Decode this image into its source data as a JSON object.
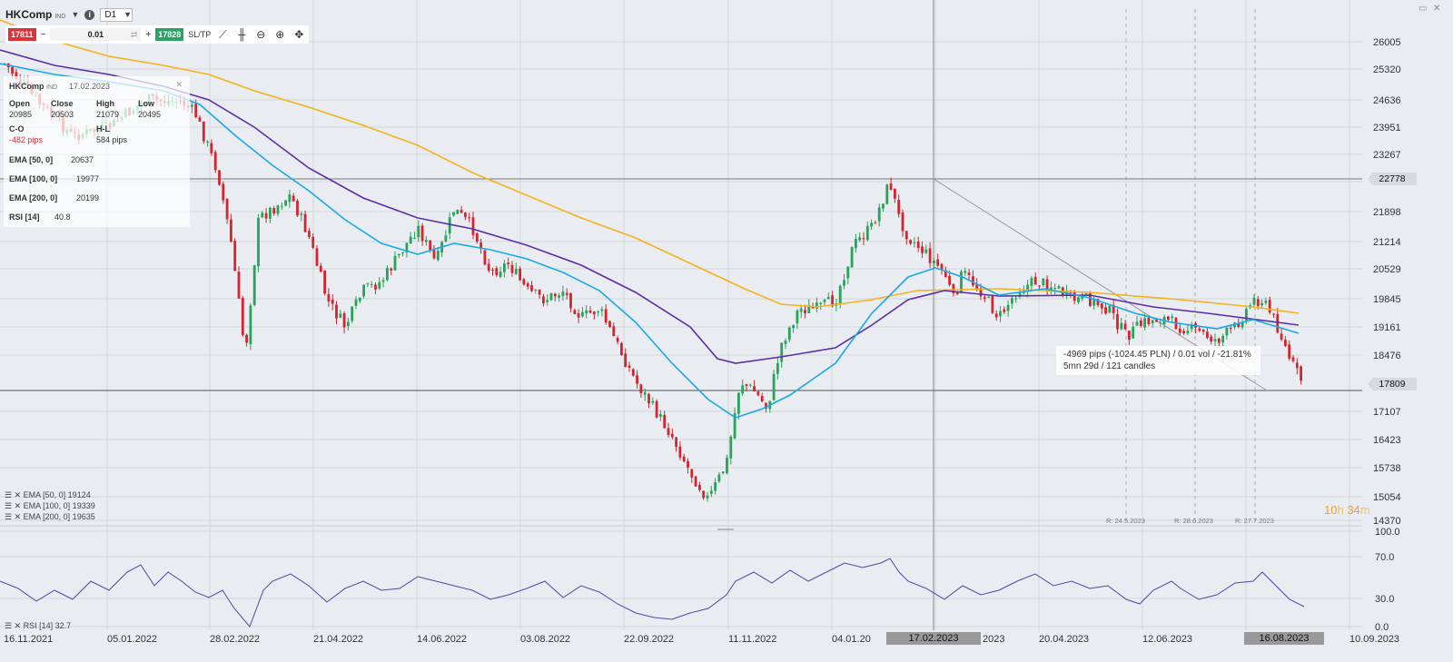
{
  "toolbar": {
    "symbol": "HKComp",
    "symbol_tag": "IND",
    "timeframe": "D1",
    "sell_price": "17811",
    "buy_price": "17828",
    "volume": "0.01",
    "sltp_label": "SL/TP",
    "minus": "−",
    "plus": "+"
  },
  "info_panel": {
    "symbol": "HKComp",
    "symbol_tag": "IND",
    "date": "17.02.2023",
    "open_label": "Open",
    "open": "20985",
    "close_label": "Close",
    "close": "20503",
    "high_label": "High",
    "high": "21079",
    "low_label": "Low",
    "low": "20495",
    "co_label": "C-O",
    "co": "-482 pips",
    "hl_label": "H-L",
    "hl": "584 pips",
    "ema50_label": "EMA [50, 0]",
    "ema50": "20637",
    "ema100_label": "EMA [100, 0]",
    "ema100": "19977",
    "ema200_label": "EMA [200, 0]",
    "ema200": "20199",
    "rsi_label": "RSI [14]",
    "rsi": "40.8"
  },
  "price_axis": [
    "26005",
    "25320",
    "24636",
    "23951",
    "23267",
    "21898",
    "21214",
    "20529",
    "19845",
    "19161",
    "18476",
    "17107",
    "16423",
    "15738",
    "15054",
    "14370"
  ],
  "price_tags": {
    "crosshair": "22778",
    "current": "17809"
  },
  "rsi_axis": [
    "100.0",
    "70.0",
    "30.0",
    "0.0"
  ],
  "date_axis": [
    "16.11.2021",
    "05.01.2022",
    "28.02.2022",
    "21.04.2022",
    "14.06.2022",
    "03.08.2022",
    "22.09.2022",
    "11.11.2022",
    "04.01.20",
    "2023",
    "20.04.2023",
    "12.06.2023",
    "10.09.2023"
  ],
  "date_tags": {
    "crosshair": "17.02.2023",
    "current": "16.08.2023"
  },
  "rollover_labels": [
    "R: 24.5.2023",
    "R: 28.6.2023",
    "R: 27.7.2023"
  ],
  "measure": {
    "line1": "-4969 pips (-1024.45 PLN) / 0.01 vol / -21.81%",
    "line2": "5mn 29d / 121 candles"
  },
  "timer": {
    "hours": "10",
    "h": "h",
    "minutes": "34",
    "m": "m"
  },
  "legend": {
    "ema50": "EMA [50, 0] 19124",
    "ema100": "EMA [100, 0] 19339",
    "ema200": "EMA [200, 0] 19635",
    "rsi": "RSI [14] 32.7"
  },
  "colors": {
    "ema50": "#1aa9e8",
    "ema100": "#5a2ea6",
    "ema200": "#f5b21b",
    "rsi": "#4a4aa8",
    "bull": "#27a35a",
    "bear": "#d3252f"
  },
  "chart_data": {
    "type": "line",
    "title": "",
    "ylim": [
      14370,
      26005
    ],
    "x_dates": [
      "16.11.2021",
      "05.01.2022",
      "28.02.2022",
      "21.04.2022",
      "14.06.2022",
      "03.08.2022",
      "22.09.2022",
      "11.11.2022",
      "04.01.2023",
      "17.02.2023",
      "20.04.2023",
      "12.06.2023",
      "16.08.2023"
    ],
    "series": [
      {
        "name": "EMA [50, 0]",
        "values": [
          25200,
          24300,
          23500,
          21800,
          21100,
          20200,
          18400,
          17400,
          18900,
          20700,
          20100,
          19500,
          19124
        ]
      },
      {
        "name": "EMA [100, 0]",
        "values": [
          25700,
          25200,
          24400,
          22600,
          21900,
          21300,
          20100,
          18600,
          18800,
          20000,
          20100,
          19700,
          19339
        ]
      },
      {
        "name": "EMA [200, 0]",
        "values": [
          26600,
          26200,
          25500,
          24600,
          23600,
          22900,
          21700,
          20300,
          19900,
          20200,
          20100,
          19900,
          19635
        ]
      }
    ],
    "rsi": {
      "name": "RSI [14]",
      "ylim": [
        0,
        100
      ],
      "last": 32.7
    }
  }
}
